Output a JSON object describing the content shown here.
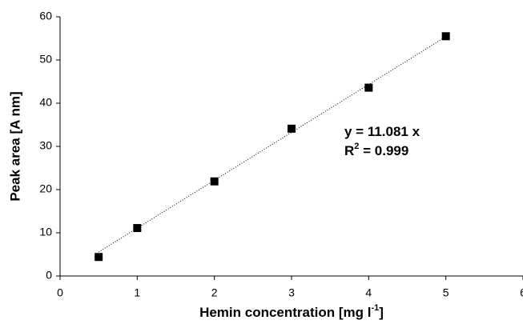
{
  "chart_data": {
    "type": "scatter",
    "x_label": [
      "Hemin concentration [mg l",
      "-1",
      "]"
    ],
    "y_label": "Peak area [A nm]",
    "annotations": [
      [
        "y = 11.081 x"
      ],
      [
        "R",
        "2",
        " = 0.999"
      ]
    ],
    "series": [
      {
        "name": "Peak area",
        "color": "#000000",
        "x": [
          0.5,
          1,
          2,
          3,
          4,
          5
        ],
        "values": [
          4.4,
          11.1,
          21.9,
          34.1,
          43.6,
          55.5
        ]
      }
    ],
    "trendline": {
      "slope": 11.081,
      "color": "#000000",
      "style": "dotted"
    },
    "xlim": [
      0,
      6
    ],
    "xticks": [
      0,
      1,
      2,
      3,
      4,
      5,
      6
    ],
    "ylim": [
      0,
      60
    ],
    "yticks": [
      0,
      10,
      20,
      30,
      40,
      50,
      60
    ],
    "grid": false
  }
}
